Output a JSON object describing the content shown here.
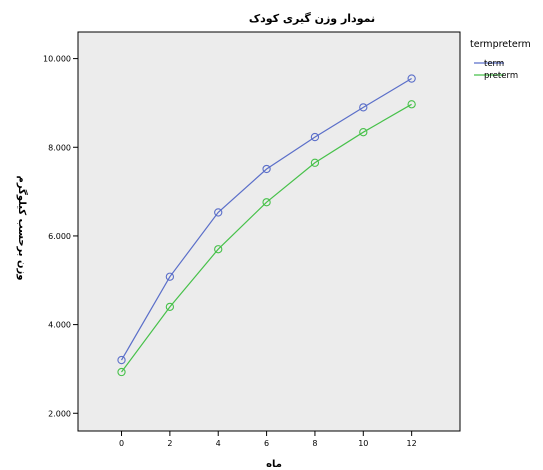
{
  "chart_data": {
    "type": "line",
    "title": "نمودار وزن گیری کودک",
    "xlabel": "ماه",
    "ylabel": "وزن برحسب کیلوگرم",
    "x": [
      0,
      2,
      4,
      6,
      8,
      10,
      12
    ],
    "xlim": [
      -1.8,
      14
    ],
    "ylim": [
      1.6,
      10.6
    ],
    "x_ticks": [
      "0",
      "2",
      "4",
      "6",
      "8",
      "10",
      "12"
    ],
    "y_ticks": [
      {
        "value": 2,
        "label": "2.000"
      },
      {
        "value": 4,
        "label": "4.000"
      },
      {
        "value": 6,
        "label": "6.000"
      },
      {
        "value": 8,
        "label": "8.000"
      },
      {
        "value": 10,
        "label": "10.000"
      }
    ],
    "legend_title": "termpreterm",
    "legend_position": "right",
    "grid": false,
    "series": [
      {
        "name": "term",
        "color": "#5b6fc9",
        "values": [
          3.2,
          5.08,
          6.53,
          7.51,
          8.23,
          8.9,
          9.55
        ]
      },
      {
        "name": "preterm",
        "color": "#47c14a",
        "values": [
          2.93,
          4.4,
          5.7,
          6.76,
          7.65,
          8.34,
          8.97
        ]
      }
    ],
    "plot_background": "#ececec"
  }
}
